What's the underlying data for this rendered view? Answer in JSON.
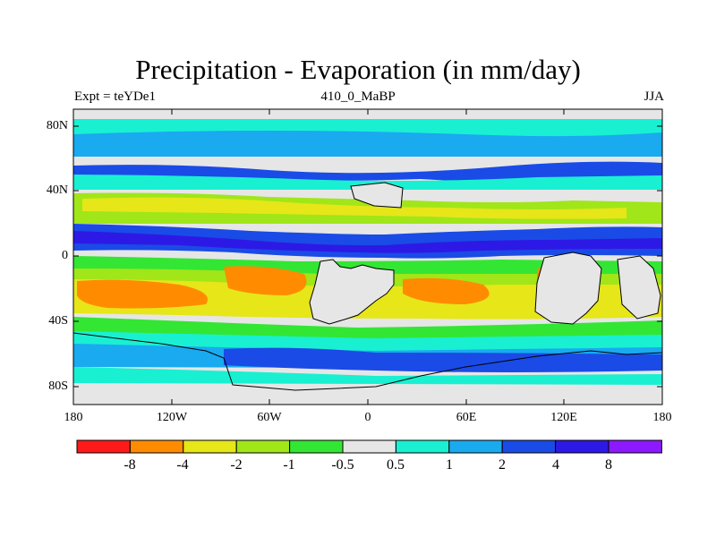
{
  "title": "Precipitation - Evaporation (in mm/day)",
  "subtitle_left": "Expt = teYDe1",
  "subtitle_center": "410_0_MaBP",
  "subtitle_right": "JJA",
  "lat_ticks": [
    "80N",
    "40N",
    "0",
    "40S",
    "80S"
  ],
  "lon_ticks": [
    "180",
    "120W",
    "60W",
    "0",
    "60E",
    "120E",
    "180"
  ],
  "colorbar": {
    "labels": [
      "-8",
      "-4",
      "-2",
      "-1",
      "-0.5",
      "0.5",
      "1",
      "2",
      "4",
      "8"
    ],
    "colors": [
      "#ff1a1a",
      "#ff8c00",
      "#e6e619",
      "#a0e619",
      "#33e633",
      "#e6e6e6",
      "#19f0d2",
      "#19aaf0",
      "#1a4be6",
      "#2d19e6",
      "#8c19ff"
    ]
  }
}
